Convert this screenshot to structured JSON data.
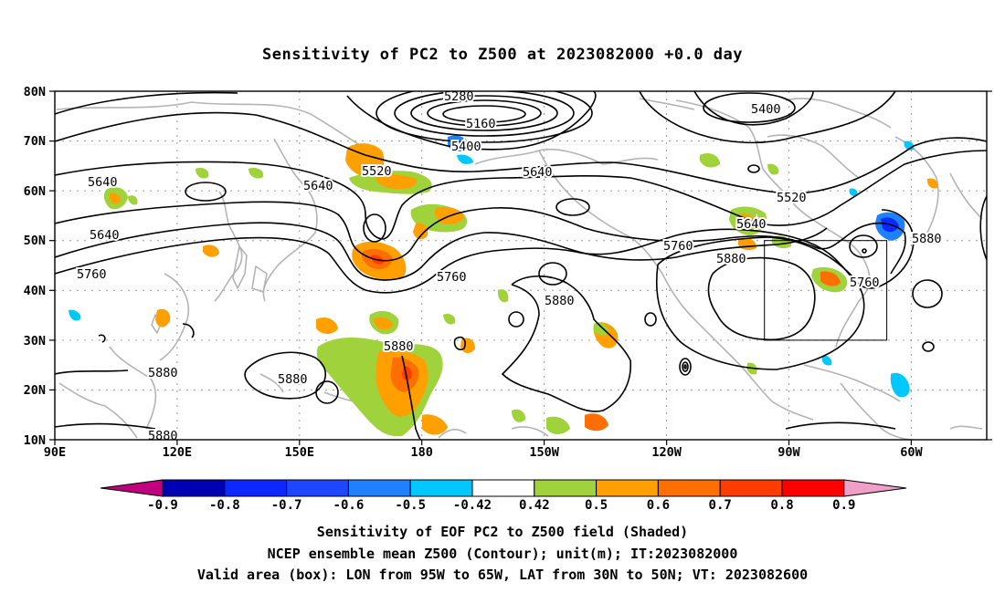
{
  "title": "Sensitivity of PC2 to Z500 at 2023082000 +0.0 day",
  "lat_labels": [
    "80N",
    "70N",
    "60N",
    "50N",
    "40N",
    "30N",
    "20N",
    "10N"
  ],
  "lon_labels": [
    "90E",
    "120E",
    "150E",
    "180",
    "150W",
    "120W",
    "90W",
    "60W"
  ],
  "contour_labels": [
    "5280",
    "5160",
    "5400",
    "5400",
    "5520",
    "5640",
    "5640",
    "5640",
    "5520",
    "5640",
    "5640",
    "5760",
    "5760",
    "5760",
    "5880",
    "5880",
    "5760",
    "5880",
    "5880",
    "5880",
    "5880",
    "5880"
  ],
  "colorbar": {
    "labels": [
      "-0.9",
      "-0.8",
      "-0.7",
      "-0.6",
      "-0.5",
      "-0.42",
      "0.42",
      "0.5",
      "0.6",
      "0.7",
      "0.8",
      "0.9"
    ],
    "colors": [
      "#c0007f",
      "#0000b4",
      "#0a28ff",
      "#1e46ff",
      "#1e82ff",
      "#00c8ff",
      "#ffffff",
      "#a0d23c",
      "#ffa000",
      "#ff6e00",
      "#ff3c00",
      "#ff0000",
      "#f0a0c8"
    ]
  },
  "valid_box": {
    "lon_min": -95,
    "lon_max": -65,
    "lat_min": 30,
    "lat_max": 50
  },
  "footer": {
    "line1": "Sensitivity of EOF PC2 to Z500 field (Shaded)",
    "line2": "NCEP ensemble mean Z500 (Contour); unit(m); IT:2023082000",
    "line3": "Valid area (box): LON from 95W to 65W, LAT from 30N to 50N; VT: 2023082600"
  }
}
